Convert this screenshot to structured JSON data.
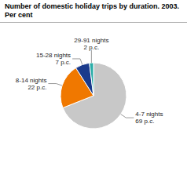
{
  "chart_data": {
    "type": "pie",
    "title": "Number of domestic holiday trips by duration. 2003.",
    "subtitle": "Per cent",
    "categories": [
      "4-7 nights",
      "8-14 nights",
      "15-28 nights",
      "29-91 nights"
    ],
    "values": [
      69,
      22,
      7,
      2
    ],
    "value_labels": [
      "69 p.c.",
      "22 p.c.",
      "7 p.c.",
      "2 p.c."
    ],
    "colors": [
      "#c8c8c8",
      "#f07800",
      "#1a3a8c",
      "#2aada8"
    ],
    "data_labels": true
  }
}
